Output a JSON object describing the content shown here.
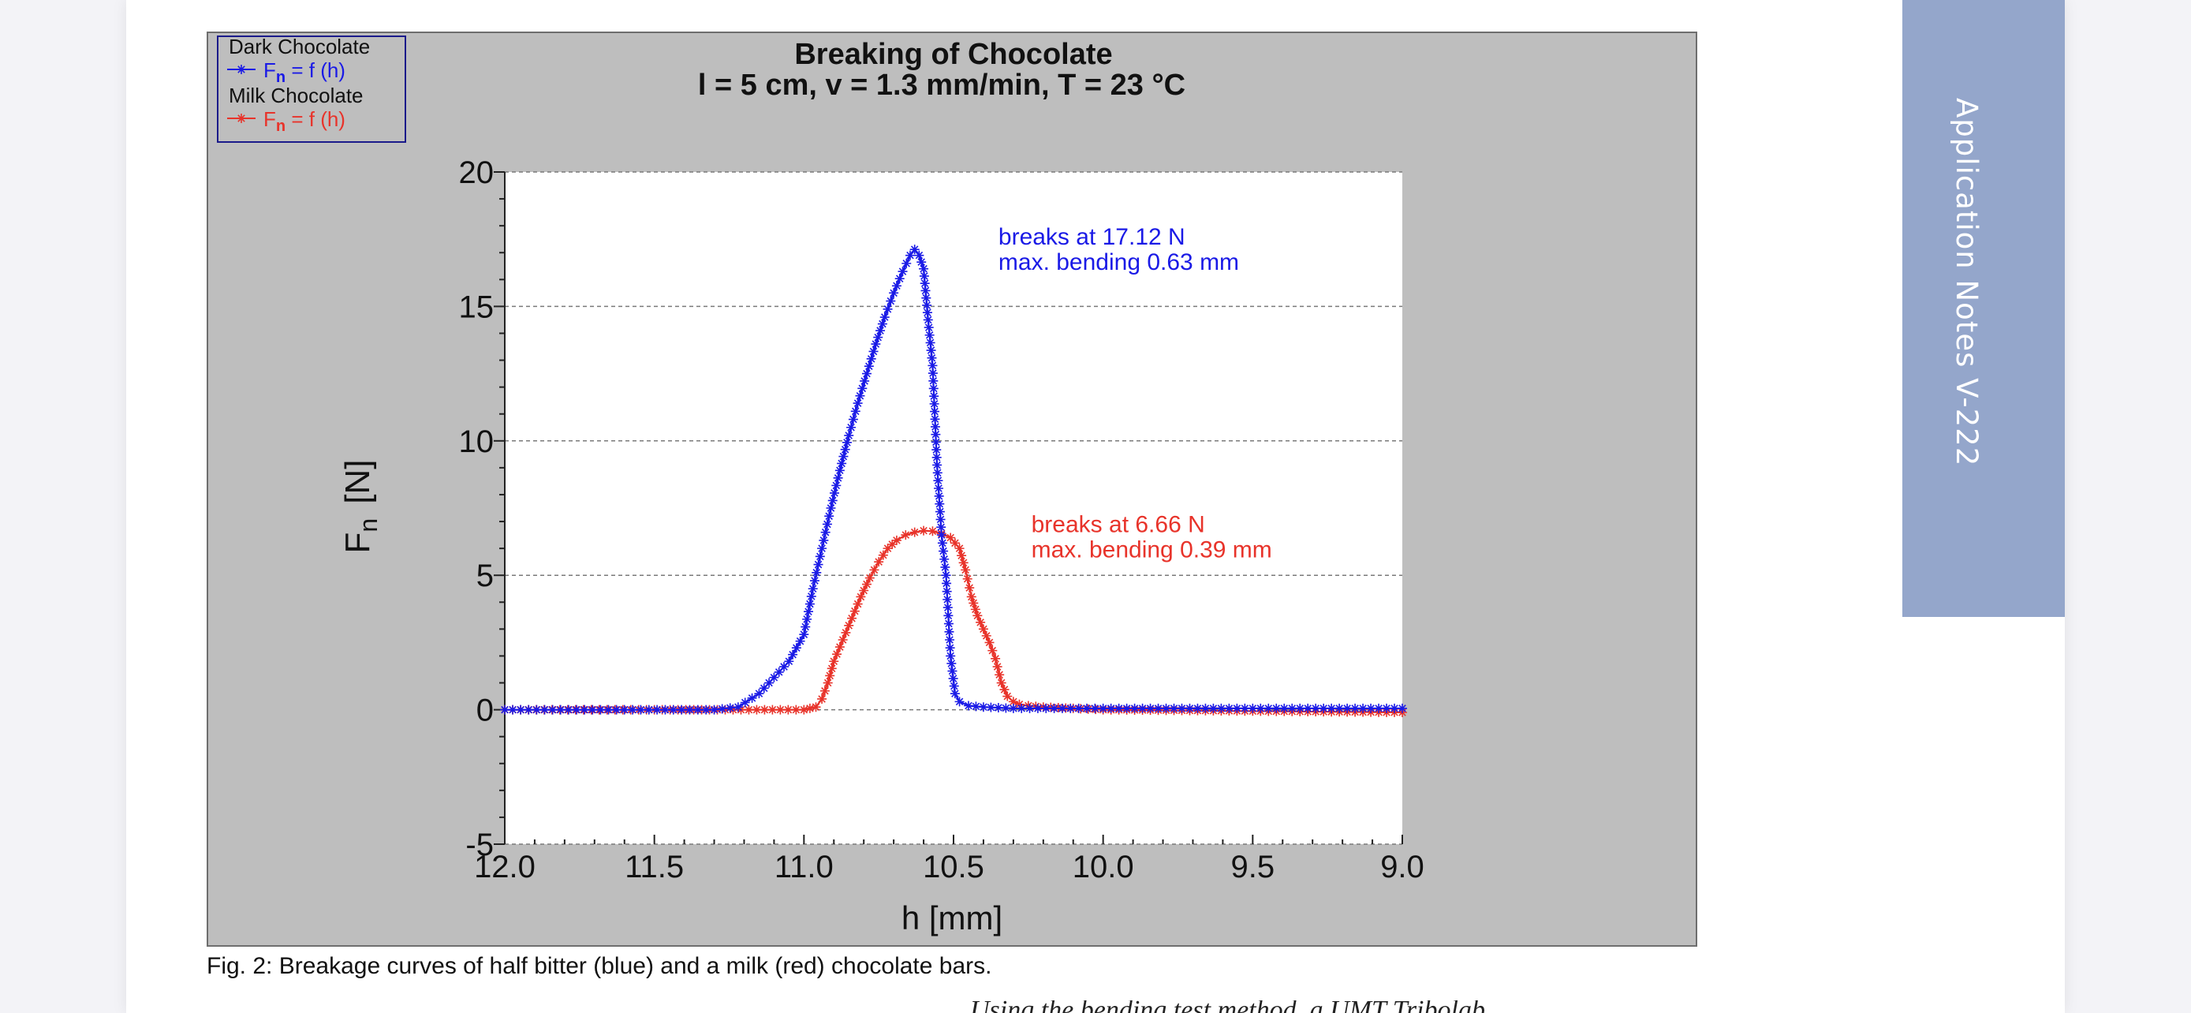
{
  "side_tab": {
    "label": "Application Notes V-222"
  },
  "caption": {
    "text": "Fig. 2: Breakage curves of half bitter (blue) and a milk (red) chocolate bars."
  },
  "next_text": {
    "text": "Using the bending test method, a UMT Tribolab"
  },
  "colors": {
    "dark": "#1a1ae6",
    "milk": "#e8332a",
    "frame_bg": "#bebebe",
    "plot_bg": "#ffffff"
  },
  "chart_data": {
    "type": "line",
    "title": "Breaking of Chocolate",
    "subtitle": "l = 5 cm, v = 1.3 mm/min, T = 23 °C",
    "xlabel": "h  [mm]",
    "ylabel_main": "F",
    "ylabel_sub": "n",
    "ylabel_unit": "[N]",
    "xlim": [
      12.0,
      9.0
    ],
    "ylim": [
      -5,
      20
    ],
    "xticks": [
      "12.0",
      "11.5",
      "11.0",
      "10.5",
      "10.0",
      "9.5",
      "9.0"
    ],
    "xtick_values": [
      12.0,
      11.5,
      11.0,
      10.5,
      10.0,
      9.5,
      9.0
    ],
    "yticks": [
      "20",
      "15",
      "10",
      "5",
      "0",
      "-5"
    ],
    "ytick_values": [
      20,
      15,
      10,
      5,
      0,
      -5
    ],
    "grid": "horizontal-dashed",
    "legend": {
      "placement": "top-left",
      "entries": [
        {
          "name": "Dark Chocolate",
          "label_main": "F",
          "label_sub": "n",
          "label_rest": " = f (h)",
          "color": "#1a1ae6"
        },
        {
          "name": "Milk Chocolate",
          "label_main": "F",
          "label_sub": "n",
          "label_rest": " = f (h)",
          "color": "#e8332a"
        }
      ]
    },
    "series": [
      {
        "name": "Dark Chocolate",
        "color": "#1a1ae6",
        "x": [
          12.0,
          11.6,
          11.3,
          11.22,
          11.15,
          11.1,
          11.05,
          11.0,
          10.97,
          10.94,
          10.91,
          10.88,
          10.85,
          10.82,
          10.79,
          10.76,
          10.73,
          10.7,
          10.67,
          10.645,
          10.63,
          10.615,
          10.6,
          10.585,
          10.57,
          10.555,
          10.54,
          10.525,
          10.51,
          10.495,
          10.48,
          10.45,
          10.4,
          10.3,
          10.0,
          9.5,
          9.0
        ],
        "y": [
          0,
          0,
          0,
          0.1,
          0.6,
          1.2,
          1.8,
          2.8,
          4.5,
          6.0,
          7.5,
          8.9,
          10.2,
          11.4,
          12.5,
          13.6,
          14.6,
          15.5,
          16.3,
          16.9,
          17.12,
          16.9,
          16.4,
          14.5,
          12.8,
          9.1,
          6.5,
          5.0,
          2.0,
          0.6,
          0.3,
          0.15,
          0.1,
          0.05,
          0.05,
          0.05,
          0.05
        ]
      },
      {
        "name": "Milk Chocolate",
        "color": "#e8332a",
        "x": [
          12.0,
          11.5,
          11.0,
          10.96,
          10.94,
          10.92,
          10.9,
          10.87,
          10.84,
          10.81,
          10.78,
          10.75,
          10.72,
          10.69,
          10.66,
          10.63,
          10.6,
          10.57,
          10.54,
          10.51,
          10.48,
          10.46,
          10.44,
          10.42,
          10.4,
          10.38,
          10.36,
          10.34,
          10.32,
          10.3,
          10.28,
          10.25,
          10.2,
          10.0,
          9.5,
          9.0
        ],
        "y": [
          0,
          0,
          0,
          0.1,
          0.4,
          1.0,
          1.8,
          2.6,
          3.4,
          4.2,
          4.9,
          5.5,
          6.0,
          6.3,
          6.5,
          6.6,
          6.66,
          6.64,
          6.55,
          6.4,
          6.0,
          5.2,
          4.2,
          3.5,
          3.0,
          2.5,
          1.9,
          1.0,
          0.5,
          0.3,
          0.2,
          0.15,
          0.1,
          0.0,
          -0.05,
          -0.1
        ]
      }
    ],
    "annotations": [
      {
        "series": "Dark Chocolate",
        "x": 10.35,
        "y": 17.3,
        "color": "#1a1ae6",
        "lines": [
          "breaks at 17.12 N",
          "max. bending 0.63 mm"
        ]
      },
      {
        "series": "Milk Chocolate",
        "x": 10.24,
        "y": 6.6,
        "color": "#e8332a",
        "lines": [
          "breaks at 6.66 N",
          "max. bending 0.39 mm"
        ]
      }
    ]
  }
}
